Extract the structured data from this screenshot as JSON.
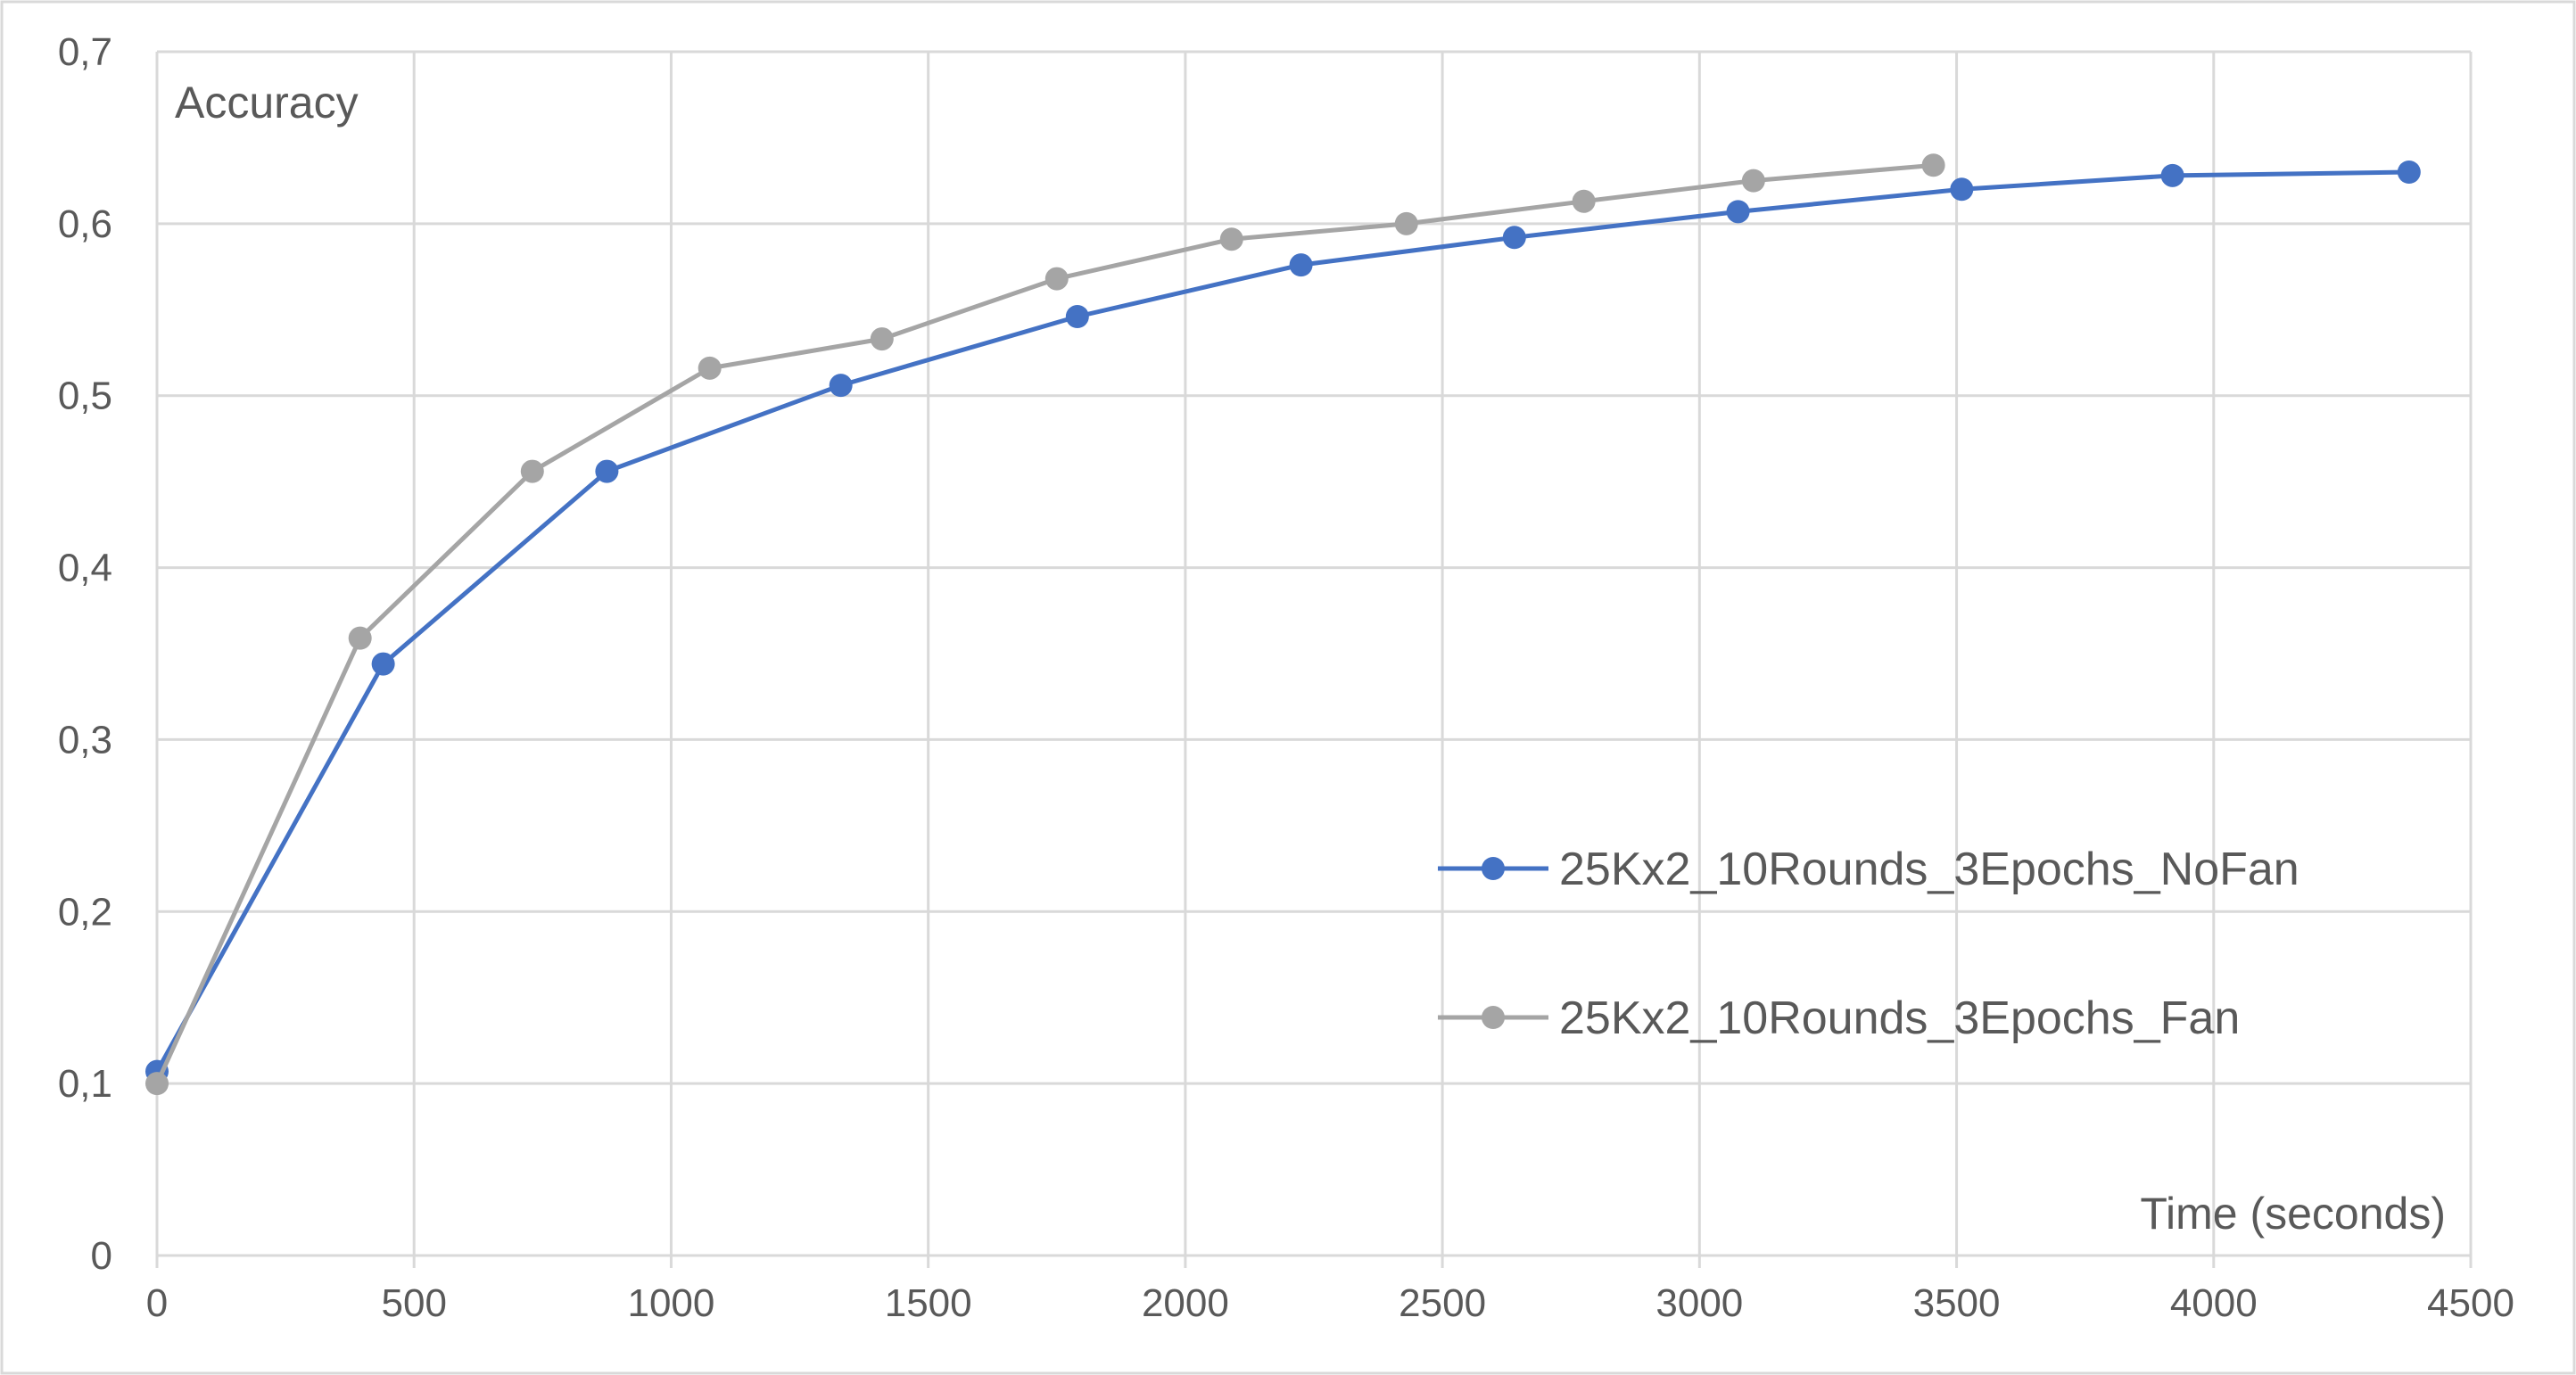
{
  "chart_data": {
    "type": "line",
    "ylabel": "Accuracy",
    "xlabel": "Time (seconds)",
    "xlim": [
      0,
      4500
    ],
    "ylim": [
      0,
      0.7
    ],
    "x_ticks": [
      0,
      500,
      1000,
      1500,
      2000,
      2500,
      3000,
      3500,
      4000,
      4500
    ],
    "x_tick_labels": [
      "0",
      "500",
      "1000",
      "1500",
      "2000",
      "2500",
      "3000",
      "3500",
      "4000",
      "4500"
    ],
    "y_ticks": [
      0,
      0.1,
      0.2,
      0.3,
      0.4,
      0.5,
      0.6,
      0.7
    ],
    "y_tick_labels": [
      "0",
      "0,1",
      "0,2",
      "0,3",
      "0,4",
      "0,5",
      "0,6",
      "0,7"
    ],
    "grid": true,
    "legend_position": "right",
    "series": [
      {
        "name": "25Kx2_10Rounds_3Epochs_NoFan",
        "color": "#4472C4",
        "points": [
          [
            0,
            0.107
          ],
          [
            440,
            0.344
          ],
          [
            875,
            0.456
          ],
          [
            1330,
            0.506
          ],
          [
            1790,
            0.546
          ],
          [
            2225,
            0.576
          ],
          [
            2640,
            0.592
          ],
          [
            3075,
            0.607
          ],
          [
            3510,
            0.62
          ],
          [
            3920,
            0.628
          ],
          [
            4380,
            0.63
          ]
        ]
      },
      {
        "name": "25Kx2_10Rounds_3Epochs_Fan",
        "color": "#A5A5A5",
        "points": [
          [
            0,
            0.1
          ],
          [
            395,
            0.359
          ],
          [
            730,
            0.456
          ],
          [
            1075,
            0.516
          ],
          [
            1410,
            0.533
          ],
          [
            1750,
            0.568
          ],
          [
            2090,
            0.591
          ],
          [
            2430,
            0.6
          ],
          [
            2775,
            0.613
          ],
          [
            3105,
            0.625
          ],
          [
            3455,
            0.634
          ]
        ]
      }
    ]
  }
}
